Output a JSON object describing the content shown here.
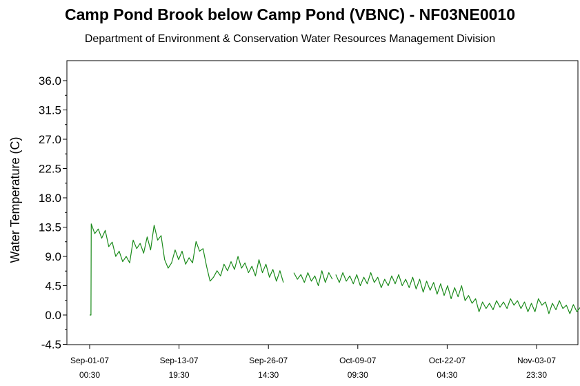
{
  "chart_data": {
    "type": "line",
    "title": "Camp Pond Brook below Camp Pond  (VBNC) - NF03NE0010",
    "subtitle": "Department of Environment & Conservation Water Resources Management Division",
    "ylabel": "Water Temperature (C)",
    "xlabel": "",
    "ylim": [
      -4.5,
      36.0
    ],
    "yticks": [
      "36.0",
      "31.5",
      "27.0",
      "22.5",
      "18.0",
      "13.5",
      "9.0",
      "4.5",
      "0.0",
      "-4.5"
    ],
    "xticks": [
      {
        "date": "Sep-01-07",
        "time": "00:30"
      },
      {
        "date": "Sep-13-07",
        "time": "19:30"
      },
      {
        "date": "Sep-26-07",
        "time": "14:30"
      },
      {
        "date": "Oct-09-07",
        "time": "09:30"
      },
      {
        "date": "Oct-22-07",
        "time": "04:30"
      },
      {
        "date": "Nov-03-07",
        "time": "23:30"
      }
    ],
    "grid": false,
    "line_color": "#1a8a1a",
    "series": [
      {
        "segments": [
          [
            [
              "2007-09-01 00:30",
              0.0
            ],
            [
              "2007-09-01 05:00",
              0.0
            ],
            [
              "2007-09-01 06:00",
              14.0
            ],
            [
              "2007-09-01 18:00",
              12.5
            ],
            [
              "2007-09-02 06:00",
              13.2
            ],
            [
              "2007-09-02 18:00",
              11.8
            ],
            [
              "2007-09-03 06:00",
              13.0
            ],
            [
              "2007-09-03 18:00",
              10.5
            ],
            [
              "2007-09-04 06:00",
              11.2
            ],
            [
              "2007-09-04 18:00",
              9.0
            ],
            [
              "2007-09-05 06:00",
              9.8
            ],
            [
              "2007-09-05 18:00",
              8.2
            ],
            [
              "2007-09-06 06:00",
              9.0
            ],
            [
              "2007-09-06 18:00",
              8.0
            ],
            [
              "2007-09-07 06:00",
              11.5
            ],
            [
              "2007-09-07 18:00",
              10.2
            ],
            [
              "2007-09-08 06:00",
              11.0
            ],
            [
              "2007-09-08 18:00",
              9.5
            ],
            [
              "2007-09-09 06:00",
              12.0
            ],
            [
              "2007-09-09 18:00",
              10.0
            ],
            [
              "2007-09-10 06:00",
              13.8
            ],
            [
              "2007-09-10 18:00",
              11.5
            ],
            [
              "2007-09-11 06:00",
              12.2
            ],
            [
              "2007-09-11 18:00",
              8.5
            ],
            [
              "2007-09-12 06:00",
              7.2
            ],
            [
              "2007-09-12 18:00",
              8.0
            ],
            [
              "2007-09-13 06:00",
              10.0
            ],
            [
              "2007-09-13 18:00",
              8.5
            ],
            [
              "2007-09-14 06:00",
              9.8
            ],
            [
              "2007-09-14 18:00",
              7.8
            ],
            [
              "2007-09-15 06:00",
              8.8
            ],
            [
              "2007-09-15 18:00",
              8.0
            ],
            [
              "2007-09-16 06:00",
              11.3
            ],
            [
              "2007-09-16 18:00",
              9.8
            ],
            [
              "2007-09-17 06:00",
              10.2
            ],
            [
              "2007-09-17 18:00",
              7.5
            ],
            [
              "2007-09-18 06:00",
              5.2
            ],
            [
              "2007-09-18 18:00",
              5.8
            ],
            [
              "2007-09-19 06:00",
              6.8
            ],
            [
              "2007-09-19 18:00",
              6.0
            ],
            [
              "2007-09-20 06:00",
              7.8
            ],
            [
              "2007-09-20 18:00",
              6.8
            ],
            [
              "2007-09-21 06:00",
              8.2
            ],
            [
              "2007-09-21 18:00",
              7.0
            ],
            [
              "2007-09-22 06:00",
              9.0
            ],
            [
              "2007-09-22 18:00",
              7.2
            ],
            [
              "2007-09-23 06:00",
              8.0
            ],
            [
              "2007-09-23 18:00",
              6.5
            ],
            [
              "2007-09-24 06:00",
              7.5
            ],
            [
              "2007-09-24 18:00",
              6.0
            ],
            [
              "2007-09-25 06:00",
              8.5
            ],
            [
              "2007-09-25 18:00",
              6.5
            ],
            [
              "2007-09-26 06:00",
              7.8
            ],
            [
              "2007-09-26 18:00",
              5.8
            ],
            [
              "2007-09-27 06:00",
              7.0
            ],
            [
              "2007-09-27 18:00",
              5.2
            ],
            [
              "2007-09-28 06:00",
              6.8
            ],
            [
              "2007-09-28 18:00",
              5.0
            ]
          ],
          [
            [
              "2007-09-30 06:00",
              6.5
            ],
            [
              "2007-09-30 18:00",
              5.5
            ],
            [
              "2007-10-01 06:00",
              6.2
            ],
            [
              "2007-10-01 18:00",
              5.0
            ],
            [
              "2007-10-02 06:00",
              6.5
            ],
            [
              "2007-10-02 18:00",
              5.2
            ],
            [
              "2007-10-03 06:00",
              6.0
            ],
            [
              "2007-10-03 18:00",
              4.5
            ],
            [
              "2007-10-04 06:00",
              6.8
            ],
            [
              "2007-10-04 18:00",
              5.0
            ],
            [
              "2007-10-05 06:00",
              6.5
            ],
            [
              "2007-10-05 18:00",
              5.5
            ]
          ],
          [
            [
              "2007-10-06 06:00",
              6.2
            ],
            [
              "2007-10-06 18:00",
              5.0
            ],
            [
              "2007-10-07 06:00",
              6.5
            ],
            [
              "2007-10-07 18:00",
              5.2
            ],
            [
              "2007-10-08 06:00",
              6.0
            ],
            [
              "2007-10-08 18:00",
              4.8
            ],
            [
              "2007-10-09 06:00",
              6.2
            ],
            [
              "2007-10-09 18:00",
              4.5
            ],
            [
              "2007-10-10 06:00",
              5.8
            ],
            [
              "2007-10-10 18:00",
              4.8
            ],
            [
              "2007-10-11 06:00",
              6.5
            ],
            [
              "2007-10-11 18:00",
              5.0
            ],
            [
              "2007-10-12 06:00",
              5.8
            ],
            [
              "2007-10-12 18:00",
              4.2
            ],
            [
              "2007-10-13 06:00",
              5.5
            ],
            [
              "2007-10-13 18:00",
              4.5
            ],
            [
              "2007-10-14 06:00",
              6.0
            ],
            [
              "2007-10-14 18:00",
              4.8
            ],
            [
              "2007-10-15 06:00",
              6.2
            ],
            [
              "2007-10-15 18:00",
              4.5
            ],
            [
              "2007-10-16 06:00",
              5.5
            ],
            [
              "2007-10-16 18:00",
              4.2
            ],
            [
              "2007-10-17 06:00",
              5.8
            ],
            [
              "2007-10-17 18:00",
              4.0
            ],
            [
              "2007-10-18 06:00",
              5.5
            ],
            [
              "2007-10-18 18:00",
              3.5
            ],
            [
              "2007-10-19 06:00",
              5.2
            ],
            [
              "2007-10-19 18:00",
              3.8
            ],
            [
              "2007-10-20 06:00",
              5.0
            ],
            [
              "2007-10-20 18:00",
              3.2
            ],
            [
              "2007-10-21 06:00",
              4.8
            ],
            [
              "2007-10-21 18:00",
              3.0
            ],
            [
              "2007-10-22 06:00",
              4.5
            ],
            [
              "2007-10-22 18:00",
              2.5
            ],
            [
              "2007-10-23 06:00",
              4.2
            ],
            [
              "2007-10-23 18:00",
              2.8
            ],
            [
              "2007-10-24 06:00",
              4.5
            ],
            [
              "2007-10-24 18:00",
              2.2
            ],
            [
              "2007-10-25 06:00",
              3.0
            ],
            [
              "2007-10-25 18:00",
              1.8
            ],
            [
              "2007-10-26 06:00",
              2.5
            ],
            [
              "2007-10-26 18:00",
              0.5
            ],
            [
              "2007-10-27 06:00",
              2.0
            ],
            [
              "2007-10-27 18:00",
              1.0
            ],
            [
              "2007-10-28 06:00",
              1.8
            ],
            [
              "2007-10-28 18:00",
              0.8
            ],
            [
              "2007-10-29 06:00",
              2.2
            ],
            [
              "2007-10-29 18:00",
              1.2
            ],
            [
              "2007-10-30 06:00",
              2.0
            ],
            [
              "2007-10-30 18:00",
              1.0
            ],
            [
              "2007-10-31 06:00",
              2.5
            ],
            [
              "2007-10-31 18:00",
              1.5
            ],
            [
              "2007-11-01 06:00",
              2.2
            ],
            [
              "2007-11-01 18:00",
              1.0
            ],
            [
              "2007-11-02 06:00",
              2.0
            ],
            [
              "2007-11-02 18:00",
              0.5
            ],
            [
              "2007-11-03 06:00",
              1.8
            ],
            [
              "2007-11-03 18:00",
              0.5
            ],
            [
              "2007-11-04 06:00",
              2.5
            ],
            [
              "2007-11-04 18:00",
              1.5
            ],
            [
              "2007-11-05 06:00",
              2.0
            ],
            [
              "2007-11-05 18:00",
              0.2
            ],
            [
              "2007-11-06 06:00",
              1.8
            ],
            [
              "2007-11-06 18:00",
              0.8
            ],
            [
              "2007-11-07 06:00",
              2.2
            ],
            [
              "2007-11-07 18:00",
              1.0
            ],
            [
              "2007-11-08 06:00",
              1.5
            ],
            [
              "2007-11-08 18:00",
              0.2
            ],
            [
              "2007-11-09 06:00",
              1.6
            ],
            [
              "2007-11-09 18:00",
              0.5
            ],
            [
              "2007-11-10 06:00",
              1.2
            ],
            [
              "2007-11-10 18:00",
              0.0
            ],
            [
              "2007-11-11 06:00",
              0.2
            ]
          ]
        ]
      }
    ]
  }
}
